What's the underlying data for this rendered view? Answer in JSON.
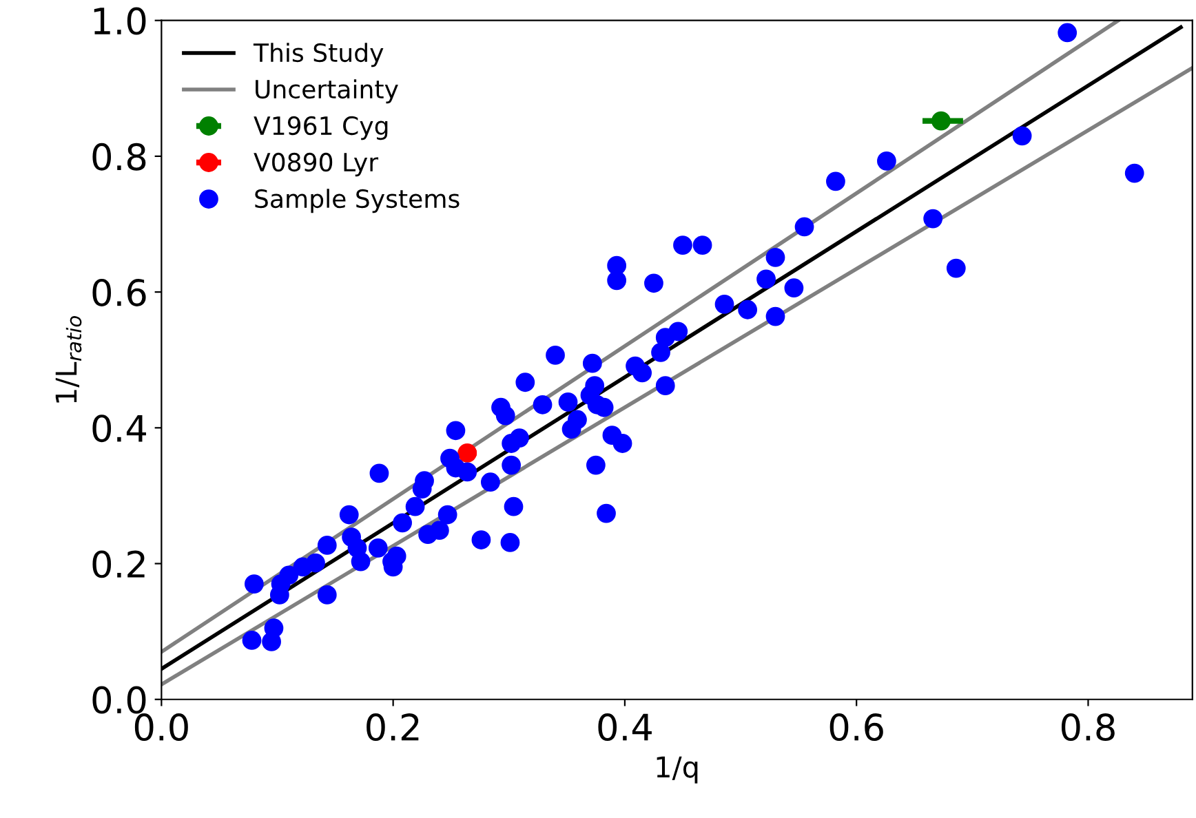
{
  "chart_data": {
    "type": "scatter",
    "xlabel": "1/q",
    "ylabel": "1/L$_{ratio}$",
    "xlim": [
      0,
      0.89
    ],
    "ylim": [
      0,
      1.0
    ],
    "xticks": [
      {
        "value": 0,
        "label": "0.0"
      },
      0.2,
      0.4,
      0.6,
      0.8
    ],
    "yticks": [
      {
        "value": 0,
        "label": "0.0"
      },
      0.2,
      0.4,
      0.6,
      0.8,
      {
        "value": 1,
        "label": "1.0"
      }
    ],
    "grid": false,
    "legend": "top left",
    "series": [
      {
        "name": "This Study",
        "type": "line",
        "color": "#000000",
        "x": [
          0,
          0.88
        ],
        "values": [
          0.045,
          0.99
        ]
      },
      {
        "name": "Uncertainty",
        "type": "line",
        "color": "#808080",
        "x": [
          0,
          0.826
        ],
        "values": [
          0.07,
          1.0
        ]
      },
      {
        "type": "line",
        "color": "#808080",
        "x": [
          0,
          0.89
        ],
        "values": [
          0.022,
          0.93
        ]
      },
      {
        "name": "V1961 Cyg",
        "marker": "circle",
        "color": "#008000",
        "x": [
          0.673
        ],
        "values": [
          0.852
        ],
        "xerrors": [
          [
            0.657,
            0.692
          ]
        ]
      },
      {
        "name": "V0890 Lyr",
        "marker": "circle",
        "color": "#ff0000",
        "x": [
          0.264
        ],
        "values": [
          0.363
        ],
        "xerrors": [
          [
            0.256,
            0.272
          ]
        ]
      },
      {
        "name": "Sample Systems",
        "marker": "circle",
        "color": "#0000ff",
        "x": [
          0.078,
          0.095,
          0.097,
          0.08,
          0.102,
          0.103,
          0.11,
          0.122,
          0.133,
          0.143,
          0.143,
          0.162,
          0.164,
          0.172,
          0.169,
          0.187,
          0.188,
          0.199,
          0.2,
          0.203,
          0.208,
          0.219,
          0.225,
          0.227,
          0.23,
          0.24,
          0.247,
          0.249,
          0.254,
          0.254,
          0.264,
          0.276,
          0.284,
          0.293,
          0.297,
          0.302,
          0.301,
          0.304,
          0.302,
          0.309,
          0.314,
          0.329,
          0.34,
          0.351,
          0.354,
          0.359,
          0.37,
          0.372,
          0.374,
          0.376,
          0.375,
          0.382,
          0.384,
          0.389,
          0.398,
          0.393,
          0.393,
          0.425,
          0.409,
          0.415,
          0.431,
          0.435,
          0.435,
          0.446,
          0.45,
          0.467,
          0.486,
          0.506,
          0.522,
          0.53,
          0.53,
          0.546,
          0.555,
          0.582,
          0.626,
          0.666,
          0.686,
          0.743,
          0.782,
          0.84
        ],
        "values": [
          0.087,
          0.085,
          0.105,
          0.17,
          0.154,
          0.17,
          0.183,
          0.195,
          0.201,
          0.227,
          0.154,
          0.272,
          0.239,
          0.203,
          0.223,
          0.223,
          0.333,
          0.203,
          0.195,
          0.211,
          0.26,
          0.284,
          0.31,
          0.322,
          0.243,
          0.249,
          0.272,
          0.355,
          0.396,
          0.341,
          0.335,
          0.235,
          0.32,
          0.43,
          0.418,
          0.345,
          0.231,
          0.284,
          0.377,
          0.385,
          0.467,
          0.434,
          0.507,
          0.438,
          0.398,
          0.412,
          0.448,
          0.495,
          0.462,
          0.434,
          0.345,
          0.43,
          0.274,
          0.389,
          0.377,
          0.639,
          0.617,
          0.613,
          0.491,
          0.481,
          0.511,
          0.533,
          0.462,
          0.542,
          0.669,
          0.669,
          0.582,
          0.574,
          0.619,
          0.651,
          0.564,
          0.606,
          0.696,
          0.763,
          0.793,
          0.708,
          0.635,
          0.83,
          0.982,
          0.775
        ]
      }
    ]
  }
}
